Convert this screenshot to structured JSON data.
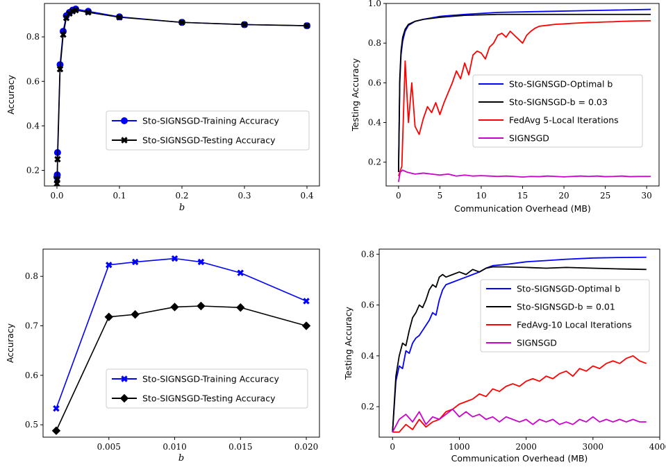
{
  "chart_data": [
    {
      "id": "p1",
      "type": "line",
      "xlabel": "b",
      "ylabel": "Accuracy",
      "xlim": [
        -0.02,
        0.42
      ],
      "ylim": [
        0.13,
        0.95
      ],
      "xticks": [
        0.0,
        0.1,
        0.2,
        0.3,
        0.4
      ],
      "xtick_labels": [
        "0.0",
        "0.1",
        "0.2",
        "0.3",
        "0.4"
      ],
      "yticks": [
        0.2,
        0.4,
        0.6,
        0.8
      ],
      "ytick_labels": [
        "0.2",
        "0.4",
        "0.6",
        "0.8"
      ],
      "legend_position": "center-right",
      "series": [
        {
          "name": "Sto-SIGNSGD-Training Accuracy",
          "color": "#0000ff",
          "marker": "circle",
          "x": [
            0.0,
            0.0005,
            0.001,
            0.005,
            0.01,
            0.015,
            0.02,
            0.025,
            0.03,
            0.05,
            0.1,
            0.2,
            0.3,
            0.4
          ],
          "y": [
            0.17,
            0.18,
            0.28,
            0.675,
            0.825,
            0.895,
            0.91,
            0.92,
            0.925,
            0.915,
            0.89,
            0.865,
            0.855,
            0.85
          ]
        },
        {
          "name": "Sto-SIGNSGD-Testing Accuracy",
          "color": "#000000",
          "marker": "x",
          "x": [
            0.0,
            0.0005,
            0.001,
            0.005,
            0.01,
            0.015,
            0.02,
            0.025,
            0.03,
            0.05,
            0.1,
            0.2,
            0.3,
            0.4
          ],
          "y": [
            0.14,
            0.16,
            0.25,
            0.655,
            0.81,
            0.885,
            0.905,
            0.915,
            0.92,
            0.91,
            0.888,
            0.865,
            0.855,
            0.85
          ]
        }
      ]
    },
    {
      "id": "p2",
      "type": "line",
      "xlabel": "Communication Overhead (MB)",
      "ylabel": "Testing Accuracy",
      "xlim": [
        -1.5,
        31.5
      ],
      "ylim": [
        0.08,
        1.0
      ],
      "xticks": [
        0,
        5,
        10,
        15,
        20,
        25,
        30
      ],
      "xtick_labels": [
        "0",
        "5",
        "10",
        "15",
        "20",
        "25",
        "30"
      ],
      "yticks": [
        0.2,
        0.4,
        0.6,
        0.8,
        1.0
      ],
      "ytick_labels": [
        "0.2",
        "0.4",
        "0.6",
        "0.8",
        "1.0"
      ],
      "legend_position": "center-right",
      "series": [
        {
          "name": "Sto-SIGNSGD-Optimal b",
          "color": "#0000ff",
          "x": [
            0,
            0.15,
            0.3,
            0.5,
            0.8,
            1.2,
            2,
            3,
            5,
            8,
            12,
            18,
            24,
            30.5
          ],
          "y": [
            0.15,
            0.6,
            0.74,
            0.81,
            0.86,
            0.89,
            0.91,
            0.92,
            0.935,
            0.945,
            0.955,
            0.96,
            0.965,
            0.97
          ]
        },
        {
          "name": "Sto-SIGNSGD-b = 0.03",
          "color": "#000000",
          "x": [
            0,
            0.15,
            0.3,
            0.5,
            0.8,
            1.2,
            2,
            3,
            5,
            8,
            12,
            18,
            24,
            30.5
          ],
          "y": [
            0.15,
            0.62,
            0.76,
            0.83,
            0.87,
            0.895,
            0.91,
            0.92,
            0.93,
            0.94,
            0.945,
            0.945,
            0.945,
            0.945
          ]
        },
        {
          "name": "FedAvg 5-Local Iterations",
          "color": "#ff0000",
          "x": [
            0,
            0.4,
            0.8,
            1.2,
            1.6,
            2.0,
            2.5,
            3.0,
            3.5,
            4.0,
            4.5,
            5.0,
            5.5,
            6.0,
            6.5,
            7.0,
            7.5,
            8.0,
            8.5,
            9.0,
            9.5,
            10.0,
            10.5,
            11.0,
            11.5,
            12.0,
            12.5,
            13.0,
            13.5,
            14.0,
            14.5,
            15.0,
            15.5,
            16.0,
            16.5,
            17.0,
            18.0,
            19.0,
            20.0,
            21.0,
            22.0,
            23.0,
            24.0,
            25.0,
            26.0,
            27.0,
            28.0,
            29.0,
            30.5
          ],
          "y": [
            0.13,
            0.18,
            0.71,
            0.4,
            0.6,
            0.38,
            0.34,
            0.42,
            0.48,
            0.45,
            0.5,
            0.44,
            0.5,
            0.55,
            0.6,
            0.66,
            0.62,
            0.7,
            0.64,
            0.74,
            0.76,
            0.75,
            0.72,
            0.78,
            0.8,
            0.84,
            0.85,
            0.83,
            0.86,
            0.84,
            0.82,
            0.8,
            0.84,
            0.86,
            0.875,
            0.885,
            0.89,
            0.895,
            0.897,
            0.9,
            0.902,
            0.904,
            0.905,
            0.907,
            0.908,
            0.91,
            0.911,
            0.912,
            0.913
          ]
        },
        {
          "name": "SIGNSGD",
          "color": "#cc00cc",
          "x": [
            0,
            0.2,
            0.5,
            1,
            2,
            3,
            4,
            5,
            6,
            7,
            8,
            9,
            10,
            11,
            12,
            13,
            14,
            15,
            16,
            17,
            18,
            19,
            20,
            21,
            22,
            23,
            24,
            25,
            26,
            27,
            28,
            29,
            30.5
          ],
          "y": [
            0.1,
            0.15,
            0.16,
            0.15,
            0.14,
            0.145,
            0.14,
            0.135,
            0.14,
            0.13,
            0.135,
            0.13,
            0.132,
            0.13,
            0.128,
            0.13,
            0.128,
            0.125,
            0.128,
            0.127,
            0.13,
            0.128,
            0.126,
            0.128,
            0.13,
            0.128,
            0.13,
            0.127,
            0.128,
            0.13,
            0.127,
            0.128,
            0.128
          ]
        }
      ]
    },
    {
      "id": "p3",
      "type": "line",
      "xlabel": "b",
      "ylabel": "Accuracy",
      "xlim": [
        0.0,
        0.021
      ],
      "ylim": [
        0.475,
        0.855
      ],
      "xticks": [
        0.005,
        0.01,
        0.015,
        0.02
      ],
      "xtick_labels": [
        "0.005",
        "0.010",
        "0.015",
        "0.020"
      ],
      "yticks": [
        0.5,
        0.6,
        0.7,
        0.8
      ],
      "ytick_labels": [
        "0.5",
        "0.6",
        "0.7",
        "0.8"
      ],
      "legend_position": "lower-right",
      "series": [
        {
          "name": "Sto-SIGNSGD-Training Accuracy",
          "color": "#0000ff",
          "marker": "x",
          "x": [
            0.001,
            0.005,
            0.007,
            0.01,
            0.012,
            0.015,
            0.02
          ],
          "y": [
            0.533,
            0.823,
            0.829,
            0.836,
            0.829,
            0.807,
            0.75
          ]
        },
        {
          "name": "Sto-SIGNSGD-Testing Accuracy",
          "color": "#000000",
          "marker": "diamond",
          "x": [
            0.001,
            0.005,
            0.007,
            0.01,
            0.012,
            0.015,
            0.02
          ],
          "y": [
            0.488,
            0.718,
            0.723,
            0.738,
            0.74,
            0.737,
            0.7
          ]
        }
      ]
    },
    {
      "id": "p4",
      "type": "line",
      "xlabel": "Communication Overhead (MB)",
      "ylabel": "Testing Accuracy",
      "xlim": [
        -200,
        4000
      ],
      "ylim": [
        0.08,
        0.82
      ],
      "xticks": [
        0,
        1000,
        2000,
        3000,
        4000
      ],
      "xtick_labels": [
        "0",
        "1000",
        "2000",
        "3000",
        "4000"
      ],
      "yticks": [
        0.2,
        0.4,
        0.6,
        0.8
      ],
      "ytick_labels": [
        "0.2",
        "0.4",
        "0.6",
        "0.8"
      ],
      "legend_position": "center-right",
      "series": [
        {
          "name": "Sto-SIGNSGD-Optimal b",
          "color": "#0000ff",
          "x": [
            0,
            50,
            100,
            150,
            200,
            250,
            300,
            350,
            400,
            450,
            500,
            550,
            600,
            650,
            700,
            750,
            800,
            900,
            1000,
            1100,
            1200,
            1300,
            1400,
            1500,
            1700,
            2000,
            2300,
            2600,
            3000,
            3400,
            3800
          ],
          "y": [
            0.1,
            0.3,
            0.36,
            0.35,
            0.42,
            0.41,
            0.45,
            0.47,
            0.48,
            0.5,
            0.52,
            0.54,
            0.57,
            0.56,
            0.62,
            0.66,
            0.68,
            0.69,
            0.7,
            0.71,
            0.72,
            0.73,
            0.745,
            0.755,
            0.76,
            0.77,
            0.775,
            0.78,
            0.785,
            0.787,
            0.788
          ]
        },
        {
          "name": "Sto-SIGNSGD-b = 0.01",
          "color": "#000000",
          "x": [
            0,
            50,
            100,
            150,
            200,
            250,
            300,
            350,
            400,
            450,
            500,
            550,
            600,
            650,
            700,
            750,
            800,
            900,
            1000,
            1100,
            1200,
            1300,
            1400,
            1500,
            1700,
            2000,
            2300,
            2600,
            3000,
            3400,
            3800
          ],
          "y": [
            0.1,
            0.32,
            0.4,
            0.45,
            0.44,
            0.5,
            0.55,
            0.57,
            0.6,
            0.59,
            0.62,
            0.66,
            0.68,
            0.67,
            0.71,
            0.72,
            0.71,
            0.72,
            0.73,
            0.72,
            0.74,
            0.73,
            0.745,
            0.75,
            0.75,
            0.748,
            0.745,
            0.748,
            0.745,
            0.742,
            0.74
          ]
        },
        {
          "name": "FedAvg-10 Local Iterations",
          "color": "#ff0000",
          "x": [
            0,
            100,
            200,
            300,
            400,
            500,
            600,
            700,
            800,
            900,
            1000,
            1100,
            1200,
            1300,
            1400,
            1500,
            1600,
            1700,
            1800,
            1900,
            2000,
            2100,
            2200,
            2300,
            2400,
            2500,
            2600,
            2700,
            2800,
            2900,
            3000,
            3100,
            3200,
            3300,
            3400,
            3500,
            3600,
            3700,
            3800
          ],
          "y": [
            0.1,
            0.1,
            0.13,
            0.11,
            0.15,
            0.12,
            0.14,
            0.15,
            0.18,
            0.19,
            0.21,
            0.22,
            0.23,
            0.25,
            0.24,
            0.27,
            0.26,
            0.28,
            0.29,
            0.28,
            0.3,
            0.31,
            0.3,
            0.32,
            0.31,
            0.33,
            0.34,
            0.32,
            0.35,
            0.34,
            0.36,
            0.35,
            0.37,
            0.38,
            0.37,
            0.39,
            0.4,
            0.38,
            0.37
          ]
        },
        {
          "name": "SIGNSGD",
          "color": "#cc00cc",
          "x": [
            0,
            100,
            200,
            300,
            400,
            500,
            600,
            700,
            800,
            900,
            1000,
            1100,
            1200,
            1300,
            1400,
            1500,
            1600,
            1700,
            1800,
            1900,
            2000,
            2100,
            2200,
            2300,
            2400,
            2500,
            2600,
            2700,
            2800,
            2900,
            3000,
            3100,
            3200,
            3300,
            3400,
            3500,
            3600,
            3700,
            3800
          ],
          "y": [
            0.1,
            0.15,
            0.17,
            0.14,
            0.18,
            0.13,
            0.16,
            0.15,
            0.17,
            0.19,
            0.16,
            0.18,
            0.16,
            0.17,
            0.15,
            0.16,
            0.14,
            0.16,
            0.15,
            0.14,
            0.15,
            0.13,
            0.15,
            0.14,
            0.15,
            0.13,
            0.14,
            0.13,
            0.15,
            0.14,
            0.16,
            0.14,
            0.15,
            0.14,
            0.15,
            0.14,
            0.15,
            0.14,
            0.14
          ]
        }
      ]
    }
  ]
}
